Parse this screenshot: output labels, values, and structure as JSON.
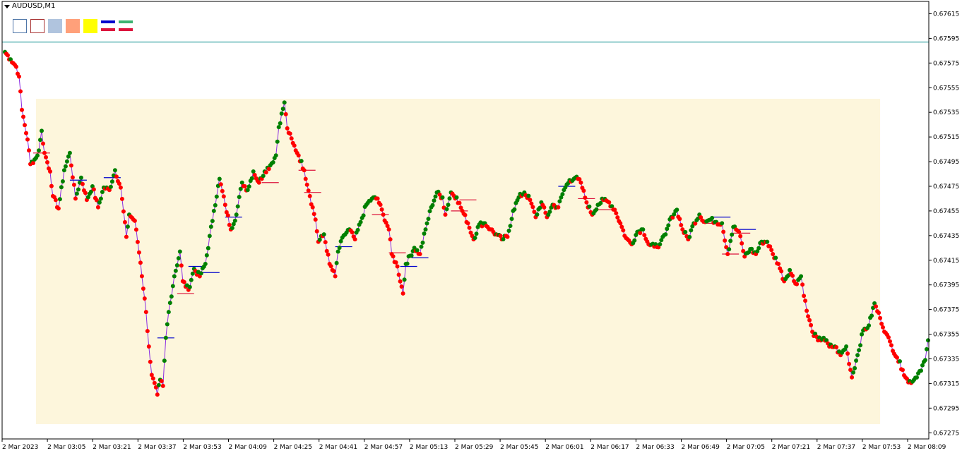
{
  "window": {
    "title": "AUDUSD,M1"
  },
  "toolbar": {
    "buttons": [
      {
        "name": "outline-blue-box-button",
        "type": "box",
        "fill": "#ffffff",
        "border": "#4f76a8"
      },
      {
        "name": "outline-red-box-button",
        "type": "box",
        "fill": "#ffffff",
        "border": "#a83232"
      },
      {
        "name": "light-blue-box-button",
        "type": "box",
        "fill": "#b0c4de",
        "border": "#b0c4de"
      },
      {
        "name": "salmon-box-button",
        "type": "box",
        "fill": "#ffa07a",
        "border": "#ffa07a"
      },
      {
        "name": "yellow-box-button",
        "type": "box",
        "fill": "#ffff00",
        "border": "#ffff00"
      },
      {
        "name": "blue-red-lines-button",
        "type": "lines",
        "top": "#0000cd",
        "bottom": "#dc143c"
      },
      {
        "name": "green-red-lines-button",
        "type": "lines",
        "top": "#3cb371",
        "bottom": "#dc143c"
      }
    ]
  },
  "colors": {
    "background": "#ffffff",
    "axis": "#000000",
    "line": "#8a2be2",
    "up_dot": "#008000",
    "down_dot": "#ff0000",
    "box_fill": "#fdf6dc",
    "level_line": "#008b8b",
    "marker_up": "#0000cd",
    "marker_down": "#dc143c"
  },
  "chart_data": {
    "type": "line",
    "symbol": "AUDUSD",
    "timeframe": "M1",
    "ylim": [
      0.6727,
      0.67625
    ],
    "y_ticks": [
      "0.67615",
      "0.67595",
      "0.67575",
      "0.67555",
      "0.67535",
      "0.67515",
      "0.67495",
      "0.67475",
      "0.67455",
      "0.67435",
      "0.67415",
      "0.67395",
      "0.67375",
      "0.67355",
      "0.67335",
      "0.67315",
      "0.67295",
      "0.67275"
    ],
    "x_tick_labels": [
      "2 Mar 2023",
      "2 Mar 03:05",
      "2 Mar 03:21",
      "2 Mar 03:37",
      "2 Mar 03:53",
      "2 Mar 04:09",
      "2 Mar 04:25",
      "2 Mar 04:41",
      "2 Mar 04:57",
      "2 Mar 05:13",
      "2 Mar 05:29",
      "2 Mar 05:45",
      "2 Mar 06:01",
      "2 Mar 06:17",
      "2 Mar 06:33",
      "2 Mar 06:49",
      "2 Mar 07:05",
      "2 Mar 07:21",
      "2 Mar 07:37",
      "2 Mar 07:53",
      "2 Mar 08:09"
    ],
    "x_range": [
      0,
      327
    ],
    "horizontal_level": 0.67592,
    "shaded_range": {
      "x": [
        11,
        310
      ],
      "y": [
        0.67282,
        0.67546
      ]
    },
    "keypoints": [
      [
        0,
        0.67584
      ],
      [
        2,
        0.67578
      ],
      [
        4,
        0.67572
      ],
      [
        5,
        0.67564
      ],
      [
        6,
        0.67537
      ],
      [
        8,
        0.67513
      ],
      [
        9,
        0.67493
      ],
      [
        11,
        0.67498
      ],
      [
        12,
        0.67504
      ],
      [
        13,
        0.6752
      ],
      [
        14,
        0.67502
      ],
      [
        16,
        0.67487
      ],
      [
        17,
        0.67467
      ],
      [
        19,
        0.67457
      ],
      [
        21,
        0.67488
      ],
      [
        23,
        0.67502
      ],
      [
        25,
        0.67465
      ],
      [
        27,
        0.67482
      ],
      [
        29,
        0.67464
      ],
      [
        31,
        0.67475
      ],
      [
        33,
        0.67458
      ],
      [
        35,
        0.67474
      ],
      [
        37,
        0.67472
      ],
      [
        39,
        0.67488
      ],
      [
        41,
        0.67474
      ],
      [
        43,
        0.67434
      ],
      [
        44,
        0.67452
      ],
      [
        46,
        0.67447
      ],
      [
        48,
        0.67413
      ],
      [
        50,
        0.67373
      ],
      [
        51,
        0.67345
      ],
      [
        52,
        0.67322
      ],
      [
        54,
        0.67306
      ],
      [
        55,
        0.67318
      ],
      [
        56,
        0.67313
      ],
      [
        57,
        0.67352
      ],
      [
        58,
        0.67373
      ],
      [
        60,
        0.67402
      ],
      [
        62,
        0.67422
      ],
      [
        63,
        0.67398
      ],
      [
        65,
        0.67391
      ],
      [
        67,
        0.67408
      ],
      [
        69,
        0.67402
      ],
      [
        71,
        0.67412
      ],
      [
        74,
        0.67455
      ],
      [
        76,
        0.67481
      ],
      [
        78,
        0.6746
      ],
      [
        80,
        0.6744
      ],
      [
        82,
        0.67452
      ],
      [
        84,
        0.67478
      ],
      [
        86,
        0.67472
      ],
      [
        88,
        0.67487
      ],
      [
        90,
        0.67478
      ],
      [
        92,
        0.67487
      ],
      [
        94,
        0.67492
      ],
      [
        96,
        0.675
      ],
      [
        97,
        0.67523
      ],
      [
        99,
        0.67543
      ],
      [
        100,
        0.67522
      ],
      [
        102,
        0.6751
      ],
      [
        104,
        0.675
      ],
      [
        106,
        0.67488
      ],
      [
        108,
        0.67467
      ],
      [
        110,
        0.67448
      ],
      [
        111,
        0.6743
      ],
      [
        113,
        0.67436
      ],
      [
        115,
        0.67412
      ],
      [
        117,
        0.67402
      ],
      [
        118,
        0.67422
      ],
      [
        120,
        0.67435
      ],
      [
        122,
        0.6744
      ],
      [
        124,
        0.67432
      ],
      [
        126,
        0.67446
      ],
      [
        128,
        0.6746
      ],
      [
        130,
        0.67465
      ],
      [
        132,
        0.67465
      ],
      [
        134,
        0.67452
      ],
      [
        136,
        0.6744
      ],
      [
        137,
        0.6742
      ],
      [
        139,
        0.6741
      ],
      [
        141,
        0.67388
      ],
      [
        142,
        0.67412
      ],
      [
        145,
        0.67425
      ],
      [
        147,
        0.6742
      ],
      [
        149,
        0.6744
      ],
      [
        151,
        0.67458
      ],
      [
        153,
        0.6747
      ],
      [
        155,
        0.67466
      ],
      [
        156,
        0.67452
      ],
      [
        158,
        0.6747
      ],
      [
        160,
        0.67466
      ],
      [
        162,
        0.67455
      ],
      [
        164,
        0.67445
      ],
      [
        166,
        0.67432
      ],
      [
        168,
        0.67444
      ],
      [
        170,
        0.67445
      ],
      [
        172,
        0.6744
      ],
      [
        174,
        0.67436
      ],
      [
        176,
        0.67432
      ],
      [
        178,
        0.67434
      ],
      [
        180,
        0.67455
      ],
      [
        182,
        0.67466
      ],
      [
        184,
        0.6747
      ],
      [
        186,
        0.67464
      ],
      [
        188,
        0.6745
      ],
      [
        190,
        0.67462
      ],
      [
        192,
        0.6745
      ],
      [
        194,
        0.6746
      ],
      [
        196,
        0.67458
      ],
      [
        198,
        0.67472
      ],
      [
        200,
        0.6748
      ],
      [
        202,
        0.67482
      ],
      [
        204,
        0.67478
      ],
      [
        206,
        0.67462
      ],
      [
        208,
        0.67452
      ],
      [
        210,
        0.6746
      ],
      [
        212,
        0.67464
      ],
      [
        214,
        0.67462
      ],
      [
        216,
        0.67456
      ],
      [
        218,
        0.67445
      ],
      [
        220,
        0.67433
      ],
      [
        222,
        0.67428
      ],
      [
        224,
        0.67438
      ],
      [
        226,
        0.6744
      ],
      [
        228,
        0.67428
      ],
      [
        230,
        0.67426
      ],
      [
        232,
        0.67428
      ],
      [
        234,
        0.67436
      ],
      [
        236,
        0.6745
      ],
      [
        238,
        0.67456
      ],
      [
        240,
        0.6744
      ],
      [
        242,
        0.67432
      ],
      [
        244,
        0.67445
      ],
      [
        246,
        0.67452
      ],
      [
        248,
        0.67446
      ],
      [
        250,
        0.67448
      ],
      [
        252,
        0.67446
      ],
      [
        254,
        0.67445
      ],
      [
        256,
        0.6742
      ],
      [
        258,
        0.67442
      ],
      [
        260,
        0.67438
      ],
      [
        262,
        0.67418
      ],
      [
        264,
        0.67424
      ],
      [
        266,
        0.6742
      ],
      [
        268,
        0.6743
      ],
      [
        270,
        0.6743
      ],
      [
        272,
        0.6742
      ],
      [
        274,
        0.67412
      ],
      [
        276,
        0.67398
      ],
      [
        278,
        0.67407
      ],
      [
        280,
        0.67396
      ],
      [
        282,
        0.67402
      ],
      [
        284,
        0.67374
      ],
      [
        286,
        0.67357
      ],
      [
        288,
        0.6735
      ],
      [
        290,
        0.67352
      ],
      [
        292,
        0.67345
      ],
      [
        294,
        0.67345
      ],
      [
        296,
        0.67338
      ],
      [
        298,
        0.67345
      ],
      [
        300,
        0.6732
      ],
      [
        302,
        0.67338
      ],
      [
        304,
        0.67358
      ],
      [
        306,
        0.67362
      ],
      [
        308,
        0.6738
      ],
      [
        310,
        0.67368
      ],
      [
        312,
        0.67356
      ],
      [
        314,
        0.67346
      ],
      [
        316,
        0.67336
      ],
      [
        318,
        0.67326
      ],
      [
        320,
        0.67316
      ],
      [
        322,
        0.67318
      ],
      [
        324,
        0.67325
      ],
      [
        326,
        0.67334
      ],
      [
        327,
        0.6735
      ]
    ],
    "markers": [
      {
        "x": 13,
        "y": 0.67502,
        "dir": "down"
      },
      {
        "x": 26,
        "y": 0.6748,
        "dir": "up"
      },
      {
        "x": 38,
        "y": 0.67482,
        "dir": "up"
      },
      {
        "x": 57,
        "y": 0.67352,
        "dir": "up"
      },
      {
        "x": 64,
        "y": 0.67388,
        "dir": "down"
      },
      {
        "x": 68,
        "y": 0.6741,
        "dir": "up"
      },
      {
        "x": 73,
        "y": 0.67405,
        "dir": "up"
      },
      {
        "x": 81,
        "y": 0.6745,
        "dir": "up"
      },
      {
        "x": 94,
        "y": 0.67478,
        "dir": "down"
      },
      {
        "x": 107,
        "y": 0.67488,
        "dir": "down"
      },
      {
        "x": 109,
        "y": 0.6747,
        "dir": "down"
      },
      {
        "x": 120,
        "y": 0.67426,
        "dir": "up"
      },
      {
        "x": 133,
        "y": 0.67452,
        "dir": "down"
      },
      {
        "x": 139,
        "y": 0.67421,
        "dir": "down"
      },
      {
        "x": 143,
        "y": 0.6741,
        "dir": "up"
      },
      {
        "x": 147,
        "y": 0.67417,
        "dir": "up"
      },
      {
        "x": 161,
        "y": 0.67455,
        "dir": "down"
      },
      {
        "x": 164,
        "y": 0.67464,
        "dir": "down"
      },
      {
        "x": 199,
        "y": 0.67475,
        "dir": "up"
      },
      {
        "x": 206,
        "y": 0.67465,
        "dir": "down"
      },
      {
        "x": 212,
        "y": 0.67456,
        "dir": "down"
      },
      {
        "x": 250,
        "y": 0.67445,
        "dir": "down"
      },
      {
        "x": 254,
        "y": 0.6745,
        "dir": "up"
      },
      {
        "x": 257,
        "y": 0.6742,
        "dir": "down"
      },
      {
        "x": 261,
        "y": 0.67437,
        "dir": "down"
      },
      {
        "x": 263,
        "y": 0.6744,
        "dir": "up"
      }
    ]
  }
}
